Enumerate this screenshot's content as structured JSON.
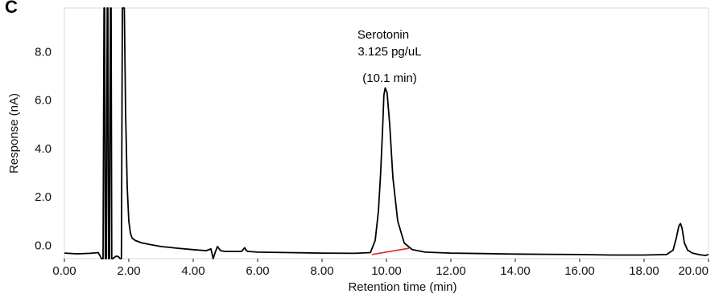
{
  "panel_label": "C",
  "chart_data": {
    "type": "line",
    "title": "",
    "xlabel": "Retention time (min)",
    "ylabel": "Response (nA)",
    "xlim": [
      0,
      20
    ],
    "ylim": [
      -0.55,
      9.8
    ],
    "x_ticks": [
      "0.00",
      "2.00",
      "4.00",
      "6.00",
      "8.00",
      "10.00",
      "12.00",
      "14.00",
      "16.00",
      "18.00",
      "20.00"
    ],
    "y_ticks": [
      "0.0",
      "2.0",
      "4.0",
      "6.0",
      "8.0"
    ],
    "grid": false,
    "legend": "none",
    "line_color": "#000000",
    "baseline_color": "#e02020",
    "series": [
      {
        "x": [
          0.0,
          0.4,
          0.8,
          1.05,
          1.1,
          1.15,
          1.2,
          1.23,
          1.25,
          1.27,
          1.3,
          1.33,
          1.35,
          1.37,
          1.4,
          1.43,
          1.45,
          1.47,
          1.5,
          1.55,
          1.6,
          1.65,
          1.7,
          1.73,
          1.77,
          1.8,
          1.83,
          1.86,
          1.9,
          1.95,
          2.0,
          2.05,
          2.1,
          2.2,
          2.4,
          2.7,
          3.0,
          3.5,
          4.0,
          4.4,
          4.55,
          4.62,
          4.68,
          4.75,
          4.85,
          5.0,
          5.5,
          5.6,
          5.65,
          5.7,
          6.0,
          7.0,
          8.0,
          9.0,
          9.5,
          9.65,
          9.75,
          9.82,
          9.88,
          9.92,
          9.96,
          10.02,
          10.1,
          10.2,
          10.35,
          10.55,
          10.8,
          11.2,
          12.0,
          13.0,
          14.0,
          15.0,
          16.0,
          17.0,
          18.0,
          18.7,
          18.9,
          19.0,
          19.08,
          19.13,
          19.18,
          19.25,
          19.35,
          19.5,
          19.7,
          19.9,
          20.0
        ],
        "y": [
          -0.32,
          -0.35,
          -0.33,
          -0.3,
          -0.42,
          -0.55,
          -0.55,
          9.8,
          9.8,
          -0.55,
          -0.55,
          9.8,
          9.8,
          -0.55,
          -0.55,
          9.8,
          9.8,
          -0.55,
          -0.55,
          -0.5,
          -0.45,
          -0.45,
          -0.5,
          -0.55,
          -0.55,
          9.8,
          9.8,
          9.8,
          5.5,
          2.4,
          1.0,
          0.5,
          0.3,
          0.2,
          0.1,
          0.02,
          -0.05,
          -0.12,
          -0.18,
          -0.22,
          -0.15,
          -0.55,
          -0.3,
          -0.05,
          -0.22,
          -0.25,
          -0.25,
          -0.1,
          -0.22,
          -0.25,
          -0.28,
          -0.3,
          -0.32,
          -0.33,
          -0.3,
          0.2,
          1.4,
          3.0,
          4.8,
          6.2,
          6.5,
          6.3,
          5.0,
          2.8,
          1.0,
          0.1,
          -0.18,
          -0.28,
          -0.32,
          -0.34,
          -0.36,
          -0.37,
          -0.38,
          -0.4,
          -0.4,
          -0.38,
          -0.2,
          0.3,
          0.8,
          0.9,
          0.7,
          0.1,
          -0.2,
          -0.32,
          -0.38,
          -0.42,
          -0.38
        ]
      }
    ],
    "peak_baseline": {
      "x": [
        9.55,
        10.7
      ],
      "y": [
        -0.38,
        -0.12
      ]
    },
    "annotations": {
      "peak_name": "Serotonin",
      "peak_concentration": "3.125 pg/uL",
      "peak_time": "(10.1 min)",
      "peak_x": 10.1
    }
  }
}
